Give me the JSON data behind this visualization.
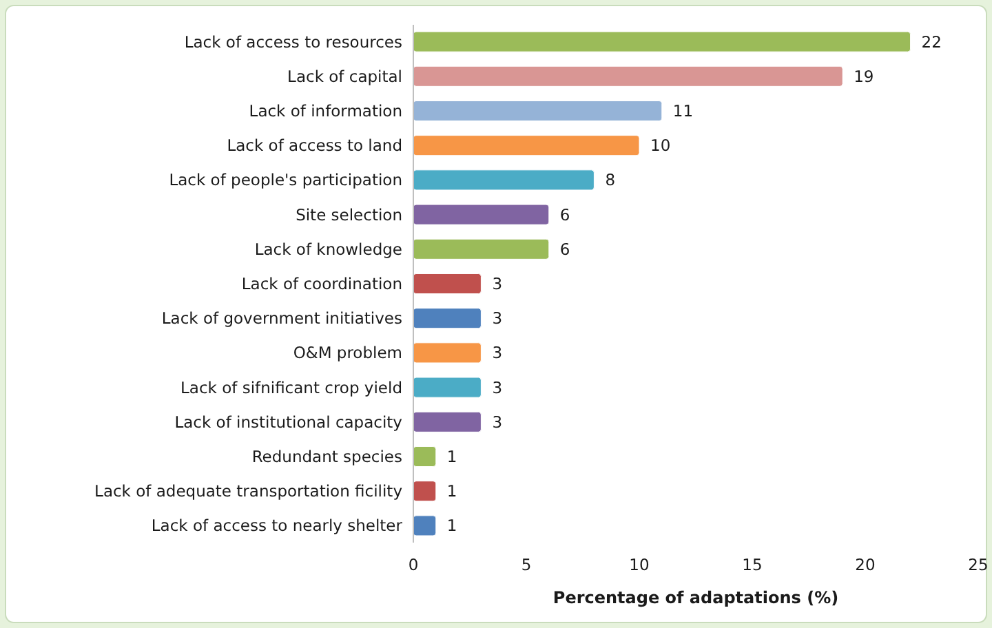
{
  "chart_data": {
    "type": "bar",
    "orientation": "horizontal",
    "xlabel": "Percentage of adaptations (%)",
    "categories": [
      "Lack of access to resources",
      "Lack of capital",
      "Lack of information",
      "Lack of access to land",
      "Lack of people's participation",
      "Site selection",
      "Lack of knowledge",
      "Lack of coordination",
      "Lack of government initiatives",
      "O&M problem",
      "Lack of sifnificant crop yield",
      "Lack of institutional capacity",
      "Redundant species",
      "Lack of adequate transportation ficility",
      "Lack of access to nearly shelter"
    ],
    "values": [
      22,
      19,
      11,
      10,
      8,
      6,
      6,
      3,
      3,
      3,
      3,
      3,
      1,
      1,
      1
    ],
    "colors": [
      "#9bbb59",
      "#d99694",
      "#95b3d7",
      "#f79646",
      "#4bacc6",
      "#8064a2",
      "#9bbb59",
      "#c0504d",
      "#4f81bd",
      "#f79646",
      "#4bacc6",
      "#8064a2",
      "#9bbb59",
      "#c0504d",
      "#4f81bd"
    ],
    "xlim": [
      0,
      25
    ],
    "xticks": [
      0,
      5,
      10,
      15,
      20,
      25
    ],
    "data_labels": true,
    "grid": false
  }
}
